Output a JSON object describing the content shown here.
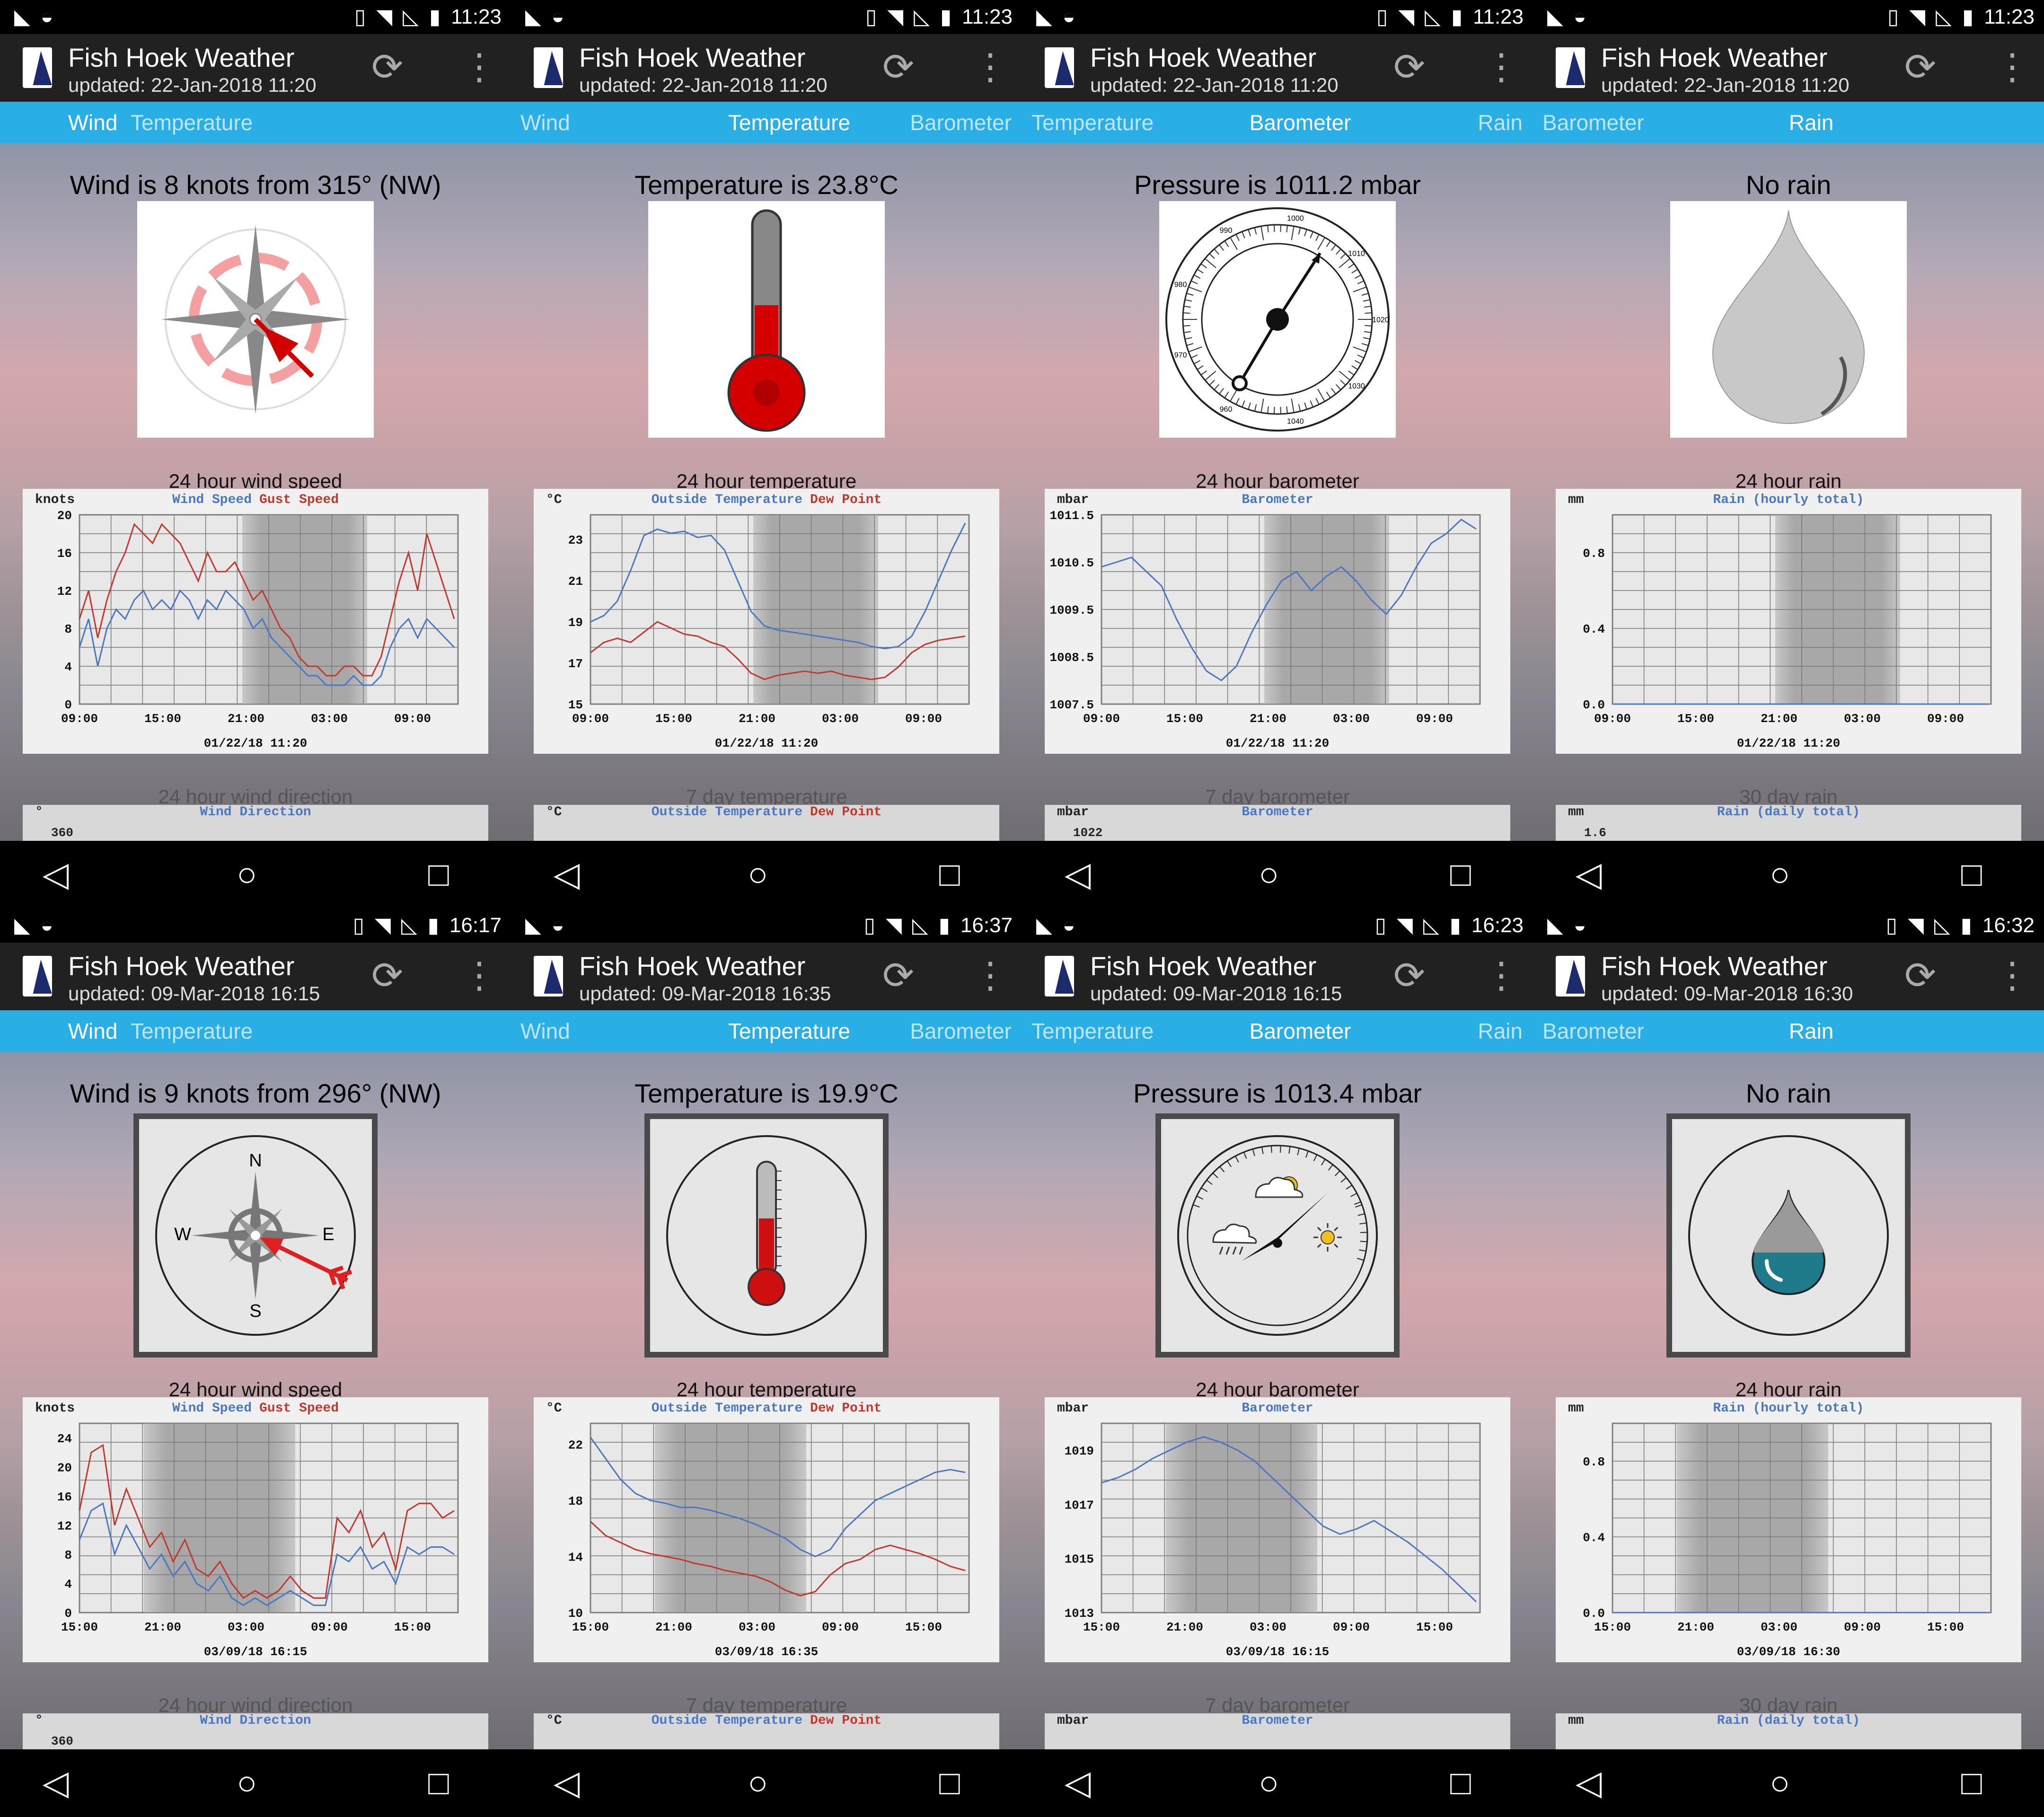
{
  "app": {
    "title": "Fish Hoek Weather",
    "refresh_icon": "refresh-icon",
    "menu_icon": "more-vert-icon"
  },
  "phones": [
    {
      "status_time": "11:23",
      "updated": "updated: 22-Jan-2018 11:20",
      "tabs": [
        {
          "label": "Wind",
          "active": true
        },
        {
          "label": "Temperature",
          "active": false
        }
      ],
      "headline": "Wind is 8 knots from 315° (NW)",
      "gauge": {
        "style": "classic",
        "kind": "wind",
        "direction_deg": 315
      },
      "chart_title": "24 hour wind speed",
      "chart_data": {
        "type": "line",
        "unit": "knots",
        "legend": [
          "Wind Speed",
          "Gust Speed"
        ],
        "x_ticks": [
          "09:00",
          "15:00",
          "21:00",
          "03:00",
          "09:00"
        ],
        "y_ticks": [
          "20",
          "16",
          "12",
          "8",
          "4",
          "0"
        ],
        "ylim": [
          0,
          20
        ],
        "timestamp": "01/22/18 11:20",
        "series": [
          {
            "name": "Wind Speed",
            "values": [
              6,
              9,
              4,
              8,
              10,
              9,
              11,
              12,
              10,
              11,
              10,
              12,
              11,
              9,
              11,
              10,
              12,
              11,
              10,
              8,
              9,
              7,
              6,
              5,
              4,
              3,
              3,
              2,
              2,
              2,
              3,
              2,
              2,
              3,
              6,
              8,
              9,
              7,
              9,
              8,
              7,
              6
            ]
          },
          {
            "name": "Gust Speed",
            "values": [
              9,
              12,
              7,
              11,
              14,
              16,
              19,
              18,
              17,
              19,
              18,
              17,
              15,
              13,
              16,
              14,
              14,
              15,
              13,
              11,
              12,
              10,
              8,
              7,
              5,
              4,
              4,
              3,
              3,
              4,
              4,
              3,
              3,
              5,
              9,
              13,
              16,
              12,
              18,
              15,
              12,
              9
            ]
          }
        ]
      },
      "stub": {
        "title": "24 hour wind direction",
        "unit": "°",
        "legend": [
          "Wind Direction"
        ],
        "first_tick": "360"
      }
    },
    {
      "status_time": "11:23",
      "updated": "updated: 22-Jan-2018 11:20",
      "tabs": [
        {
          "label": "Wind",
          "active": false
        },
        {
          "label": "Temperature",
          "active": true
        },
        {
          "label": "Barometer",
          "active": false
        }
      ],
      "headline": "Temperature is 23.8°C",
      "gauge": {
        "style": "classic",
        "kind": "thermometer",
        "fill_fraction": 0.6
      },
      "chart_title": "24 hour temperature",
      "chart_data": {
        "type": "line",
        "unit": "°C",
        "legend": [
          "Outside Temperature",
          "Dew Point"
        ],
        "x_ticks": [
          "09:00",
          "15:00",
          "21:00",
          "03:00",
          "09:00"
        ],
        "y_ticks": [
          "23",
          "21",
          "19",
          "17",
          "15"
        ],
        "ylim": [
          15,
          24.2
        ],
        "timestamp": "01/22/18 11:20",
        "series": [
          {
            "name": "Outside Temperature",
            "values": [
              19,
              19.3,
              20,
              21.5,
              23.2,
              23.5,
              23.3,
              23.4,
              23.1,
              23.2,
              22.5,
              21,
              19.5,
              18.8,
              18.6,
              18.5,
              18.4,
              18.3,
              18.2,
              18.1,
              18,
              17.8,
              17.7,
              17.8,
              18.3,
              19.5,
              21,
              22.5,
              23.8
            ]
          },
          {
            "name": "Dew Point",
            "values": [
              17.5,
              18,
              18.2,
              18,
              18.5,
              19,
              18.7,
              18.4,
              18.3,
              18,
              17.8,
              17.2,
              16.5,
              16.2,
              16.4,
              16.5,
              16.6,
              16.5,
              16.6,
              16.4,
              16.3,
              16.2,
              16.3,
              16.8,
              17.5,
              17.9,
              18.1,
              18.2,
              18.3
            ]
          }
        ]
      },
      "stub": {
        "title": "7 day temperature",
        "unit": "°C",
        "legend": [
          "Outside Temperature",
          "Dew Point"
        ],
        "first_tick": ""
      }
    },
    {
      "status_time": "11:23",
      "updated": "updated: 22-Jan-2018 11:20",
      "tabs": [
        {
          "label": "Temperature",
          "active": false
        },
        {
          "label": "Barometer",
          "active": true
        },
        {
          "label": "Rain",
          "active": false
        }
      ],
      "headline": "Pressure is 1011.2 mbar",
      "gauge": {
        "style": "classic",
        "kind": "barometer",
        "dial_labels": [
          "970",
          "980",
          "990",
          "1000",
          "1010",
          "1020",
          "1030",
          "1040",
          "960"
        ]
      },
      "chart_title": "24 hour barometer",
      "chart_data": {
        "type": "line",
        "unit": "mbar",
        "legend": [
          "Barometer"
        ],
        "x_ticks": [
          "09:00",
          "15:00",
          "21:00",
          "03:00",
          "09:00"
        ],
        "y_ticks": [
          "1011.5",
          "1010.5",
          "1009.5",
          "1008.5",
          "1007.5"
        ],
        "ylim": [
          1007.5,
          1011.5
        ],
        "timestamp": "01/22/18 11:20",
        "series": [
          {
            "name": "Barometer",
            "values": [
              1010.4,
              1010.5,
              1010.6,
              1010.3,
              1010,
              1009.3,
              1008.7,
              1008.2,
              1008,
              1008.3,
              1009,
              1009.6,
              1010.1,
              1010.3,
              1009.9,
              1010.2,
              1010.4,
              1010.1,
              1009.7,
              1009.4,
              1009.8,
              1010.4,
              1010.9,
              1011.1,
              1011.4,
              1011.2
            ]
          }
        ]
      },
      "stub": {
        "title": "7 day barometer",
        "unit": "mbar",
        "legend": [
          "Barometer"
        ],
        "first_tick": "1022"
      }
    },
    {
      "status_time": "11:23",
      "updated": "updated: 22-Jan-2018 11:20",
      "tabs": [
        {
          "label": "Barometer",
          "active": false
        },
        {
          "label": "Rain",
          "active": true
        }
      ],
      "headline": "No rain",
      "gauge": {
        "style": "classic",
        "kind": "raindrop"
      },
      "chart_title": "24 hour rain",
      "chart_data": {
        "type": "line",
        "unit": "mm",
        "legend": [
          "Rain (hourly total)"
        ],
        "x_ticks": [
          "09:00",
          "15:00",
          "21:00",
          "03:00",
          "09:00"
        ],
        "y_ticks": [
          "0.8",
          "0.4",
          "0.0"
        ],
        "ylim": [
          0,
          1
        ],
        "timestamp": "01/22/18 11:20",
        "series": [
          {
            "name": "Rain (hourly total)",
            "values": [
              0,
              0,
              0,
              0,
              0,
              0,
              0,
              0,
              0,
              0
            ]
          }
        ]
      },
      "stub": {
        "title": "30 day rain",
        "unit": "mm",
        "legend": [
          "Rain (daily total)"
        ],
        "first_tick": "1.6"
      }
    },
    {
      "status_time": "16:17",
      "updated": "updated: 09-Mar-2018 16:15",
      "tabs": [
        {
          "label": "Wind",
          "active": true
        },
        {
          "label": "Temperature",
          "active": false
        }
      ],
      "headline": "Wind is 9 knots from 296° (NW)",
      "gauge": {
        "style": "modern",
        "kind": "wind",
        "direction_deg": 296,
        "compass": [
          "N",
          "E",
          "S",
          "W"
        ]
      },
      "chart_title": "24 hour wind speed",
      "chart_data": {
        "type": "line",
        "unit": "knots",
        "legend": [
          "Wind Speed",
          "Gust Speed"
        ],
        "x_ticks": [
          "15:00",
          "21:00",
          "03:00",
          "09:00",
          "15:00"
        ],
        "y_ticks": [
          "24",
          "20",
          "16",
          "12",
          "8",
          "4",
          "0"
        ],
        "ylim": [
          0,
          26
        ],
        "timestamp": "03/09/18 16:15",
        "series": [
          {
            "name": "Wind Speed",
            "values": [
              10,
              14,
              15,
              8,
              12,
              9,
              6,
              8,
              5,
              7,
              4,
              3,
              5,
              2,
              1,
              2,
              1,
              2,
              3,
              2,
              1,
              1,
              8,
              7,
              9,
              6,
              7,
              4,
              9,
              8,
              9,
              9,
              8
            ]
          },
          {
            "name": "Gust Speed",
            "values": [
              14,
              22,
              23,
              12,
              17,
              13,
              9,
              11,
              7,
              10,
              6,
              5,
              7,
              4,
              2,
              3,
              2,
              3,
              5,
              3,
              2,
              2,
              13,
              11,
              14,
              9,
              11,
              6,
              14,
              15,
              15,
              13,
              14
            ]
          }
        ]
      },
      "stub": {
        "title": "24 hour wind direction",
        "unit": "°",
        "legend": [
          "Wind Direction"
        ],
        "first_tick": "360"
      }
    },
    {
      "status_time": "16:37",
      "updated": "updated: 09-Mar-2018 16:35",
      "tabs": [
        {
          "label": "Wind",
          "active": false
        },
        {
          "label": "Temperature",
          "active": true
        },
        {
          "label": "Barometer",
          "active": false
        }
      ],
      "headline": "Temperature is 19.9°C",
      "gauge": {
        "style": "modern",
        "kind": "thermometer",
        "fill_fraction": 0.5
      },
      "chart_title": "24 hour temperature",
      "chart_data": {
        "type": "line",
        "unit": "°C",
        "legend": [
          "Outside Temperature",
          "Dew Point"
        ],
        "x_ticks": [
          "15:00",
          "21:00",
          "03:00",
          "09:00",
          "15:00"
        ],
        "y_ticks": [
          "22",
          "18",
          "14",
          "10"
        ],
        "ylim": [
          10,
          23.5
        ],
        "timestamp": "03/09/18 16:35",
        "series": [
          {
            "name": "Outside Temperature",
            "values": [
              22.5,
              21,
              19.5,
              18.5,
              18,
              17.8,
              17.5,
              17.5,
              17.3,
              17,
              16.7,
              16.3,
              15.8,
              15.3,
              14.5,
              14,
              14.5,
              16,
              17,
              18,
              18.5,
              19,
              19.5,
              20,
              20.2,
              20
            ]
          },
          {
            "name": "Dew Point",
            "values": [
              16.5,
              15.5,
              15,
              14.5,
              14.2,
              14,
              13.8,
              13.5,
              13.3,
              13,
              12.8,
              12.6,
              12.2,
              11.6,
              11.2,
              11.5,
              12.7,
              13.5,
              13.8,
              14.5,
              14.8,
              14.5,
              14.2,
              13.8,
              13.3,
              13
            ]
          }
        ]
      },
      "stub": {
        "title": "7 day temperature",
        "unit": "°C",
        "legend": [
          "Outside Temperature",
          "Dew Point"
        ],
        "first_tick": ""
      }
    },
    {
      "status_time": "16:23",
      "updated": "updated: 09-Mar-2018 16:15",
      "tabs": [
        {
          "label": "Temperature",
          "active": false
        },
        {
          "label": "Barometer",
          "active": true
        },
        {
          "label": "Rain",
          "active": false
        }
      ],
      "headline": "Pressure is 1013.4 mbar",
      "gauge": {
        "style": "modern",
        "kind": "barometer"
      },
      "chart_title": "24 hour barometer",
      "chart_data": {
        "type": "line",
        "unit": "mbar",
        "legend": [
          "Barometer"
        ],
        "x_ticks": [
          "15:00",
          "21:00",
          "03:00",
          "09:00",
          "15:00"
        ],
        "y_ticks": [
          "1019",
          "1017",
          "1015",
          "1013"
        ],
        "ylim": [
          1013,
          1020
        ],
        "timestamp": "03/09/18 16:15",
        "series": [
          {
            "name": "Barometer",
            "values": [
              1017.8,
              1018,
              1018.3,
              1018.7,
              1019,
              1019.3,
              1019.5,
              1019.3,
              1019,
              1018.6,
              1018,
              1017.4,
              1016.8,
              1016.2,
              1015.9,
              1016.1,
              1016.4,
              1016,
              1015.6,
              1015.1,
              1014.6,
              1014,
              1013.4
            ]
          }
        ]
      },
      "stub": {
        "title": "7 day barometer",
        "unit": "mbar",
        "legend": [
          "Barometer"
        ],
        "first_tick": ""
      }
    },
    {
      "status_time": "16:32",
      "updated": "updated: 09-Mar-2018 16:30",
      "tabs": [
        {
          "label": "Barometer",
          "active": false
        },
        {
          "label": "Rain",
          "active": true
        }
      ],
      "headline": "No rain",
      "gauge": {
        "style": "modern",
        "kind": "raindrop"
      },
      "chart_title": "24 hour rain",
      "chart_data": {
        "type": "line",
        "unit": "mm",
        "legend": [
          "Rain (hourly total)"
        ],
        "x_ticks": [
          "15:00",
          "21:00",
          "03:00",
          "09:00",
          "15:00"
        ],
        "y_ticks": [
          "0.8",
          "0.4",
          "0.0"
        ],
        "ylim": [
          0,
          1
        ],
        "timestamp": "03/09/18 16:30",
        "series": [
          {
            "name": "Rain (hourly total)",
            "values": [
              0,
              0,
              0,
              0,
              0,
              0,
              0,
              0,
              0,
              0
            ]
          }
        ]
      },
      "stub": {
        "title": "30 day rain",
        "unit": "mm",
        "legend": [
          "Rain (daily total)"
        ],
        "first_tick": ""
      }
    }
  ],
  "colors": {
    "tabbar": "#29aee6",
    "appbar": "#212121",
    "series_blue": "#4a78c0",
    "series_red": "#c0392b",
    "night_band": "#a8a8a8"
  }
}
